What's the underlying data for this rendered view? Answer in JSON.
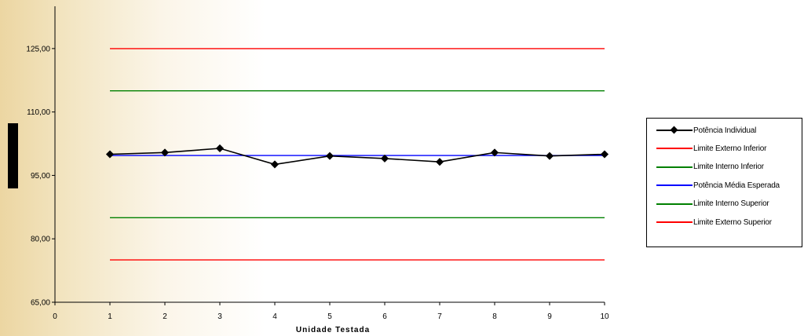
{
  "chart_data": {
    "type": "line",
    "title": "",
    "xlabel": "Unidade Testada",
    "ylabel": "",
    "xlim": [
      0,
      10
    ],
    "ylim": [
      65,
      135
    ],
    "x_ticks": [
      "0",
      "1",
      "2",
      "3",
      "4",
      "5",
      "6",
      "7",
      "8",
      "9",
      "10"
    ],
    "y_ticks": [
      "65,00",
      "80,00",
      "95,00",
      "110,00",
      "125,00"
    ],
    "y_tick_values": [
      65,
      80,
      95,
      110,
      125
    ],
    "x": [
      1,
      2,
      3,
      4,
      5,
      6,
      7,
      8,
      9,
      10
    ],
    "grid": false,
    "legend_position": "right",
    "series": [
      {
        "name": "Potência Individual",
        "color": "#000000",
        "marker": "diamond",
        "values": [
          100.0,
          100.4,
          101.4,
          97.6,
          99.6,
          99.0,
          98.2,
          100.4,
          99.6,
          100.0
        ]
      },
      {
        "name": "Limite Externo Inferior",
        "color": "#ff0000",
        "marker": "none",
        "values": [
          125,
          125,
          125,
          125,
          125,
          125,
          125,
          125,
          125,
          125
        ]
      },
      {
        "name": "Limite Interno Inferior",
        "color": "#008000",
        "marker": "none",
        "values": [
          115,
          115,
          115,
          115,
          115,
          115,
          115,
          115,
          115,
          115
        ]
      },
      {
        "name": "Potência Média Esperada",
        "color": "#0000ff",
        "marker": "none",
        "values": [
          99.7,
          99.7,
          99.7,
          99.7,
          99.7,
          99.7,
          99.7,
          99.7,
          99.7,
          99.7
        ]
      },
      {
        "name": "Limite Interno Superior",
        "color": "#008000",
        "marker": "none",
        "values": [
          85,
          85,
          85,
          85,
          85,
          85,
          85,
          85,
          85,
          85
        ]
      },
      {
        "name": "Limite Externo Superior",
        "color": "#ff0000",
        "marker": "none",
        "values": [
          75,
          75,
          75,
          75,
          75,
          75,
          75,
          75,
          75,
          75
        ]
      }
    ]
  }
}
